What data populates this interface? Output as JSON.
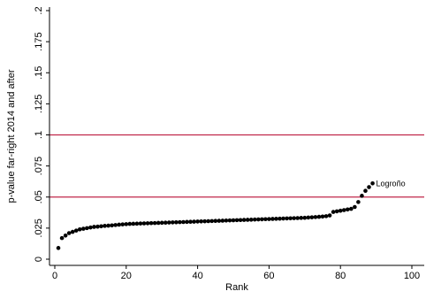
{
  "chart_data": {
    "type": "scatter",
    "xlabel": "Rank",
    "ylabel": "p-value far-right 2014 and after",
    "xlim": [
      0,
      100
    ],
    "ylim": [
      0,
      0.2
    ],
    "x_ticks": [
      "0",
      "20",
      "40",
      "60",
      "80",
      "100"
    ],
    "y_ticks": [
      "0",
      ".025",
      ".05",
      ".075",
      ".1",
      ".125",
      ".15",
      ".175",
      ".2"
    ],
    "grid": false,
    "reference_lines": [
      {
        "axis": "y",
        "value": 0.1,
        "color": "#c0274a"
      },
      {
        "axis": "y",
        "value": 0.05,
        "color": "#c0274a"
      }
    ],
    "marker_color": "#000000",
    "annotations": [
      {
        "text": "Logroño",
        "x": 89,
        "y": 0.061
      }
    ],
    "series": [
      {
        "x": [
          1,
          2,
          3,
          4,
          5,
          6,
          7,
          8,
          9,
          10,
          11,
          12,
          13,
          14,
          15,
          16,
          17,
          18,
          19,
          20,
          21,
          22,
          23,
          24,
          25,
          26,
          27,
          28,
          29,
          30,
          31,
          32,
          33,
          34,
          35,
          36,
          37,
          38,
          39,
          40,
          41,
          42,
          43,
          44,
          45,
          46,
          47,
          48,
          49,
          50,
          51,
          52,
          53,
          54,
          55,
          56,
          57,
          58,
          59,
          60,
          61,
          62,
          63,
          64,
          65,
          66,
          67,
          68,
          69,
          70,
          71,
          72,
          73,
          74,
          75,
          76,
          77,
          78,
          79,
          80,
          81,
          82,
          83,
          84,
          85,
          86,
          87,
          88,
          89
        ],
        "y": [
          0.009,
          0.017,
          0.019,
          0.021,
          0.022,
          0.023,
          0.024,
          0.0245,
          0.025,
          0.0255,
          0.026,
          0.0262,
          0.0265,
          0.0268,
          0.027,
          0.0272,
          0.0275,
          0.0278,
          0.028,
          0.0282,
          0.0284,
          0.0285,
          0.0286,
          0.0287,
          0.0288,
          0.0289,
          0.029,
          0.0291,
          0.0292,
          0.0293,
          0.0294,
          0.0295,
          0.0296,
          0.0297,
          0.0298,
          0.0299,
          0.03,
          0.0301,
          0.0302,
          0.0303,
          0.0304,
          0.0305,
          0.0306,
          0.0307,
          0.0308,
          0.0309,
          0.031,
          0.0311,
          0.0312,
          0.0313,
          0.0314,
          0.0315,
          0.0316,
          0.0317,
          0.0318,
          0.0319,
          0.032,
          0.0321,
          0.0322,
          0.0323,
          0.0324,
          0.0325,
          0.0326,
          0.0327,
          0.0328,
          0.0329,
          0.033,
          0.0331,
          0.0332,
          0.0333,
          0.0335,
          0.0337,
          0.0339,
          0.0341,
          0.0343,
          0.0346,
          0.0352,
          0.038,
          0.0385,
          0.039,
          0.0395,
          0.04,
          0.0405,
          0.042,
          0.046,
          0.051,
          0.055,
          0.058,
          0.061
        ]
      }
    ]
  }
}
